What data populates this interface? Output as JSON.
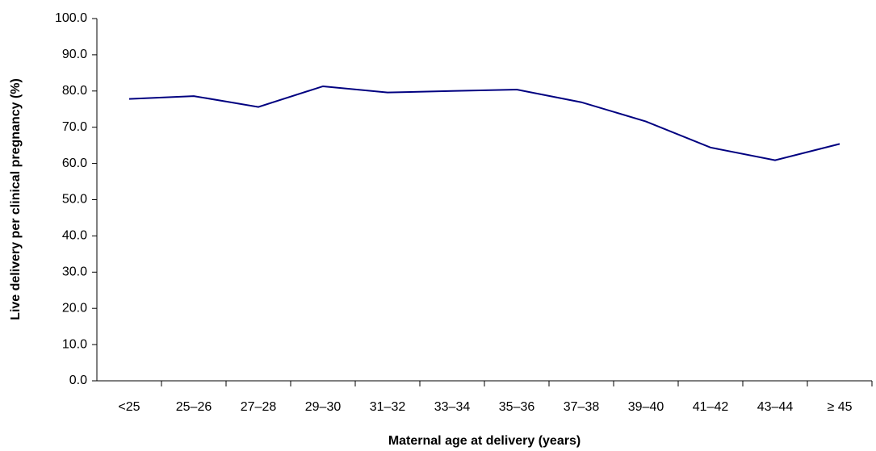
{
  "chart_data": {
    "type": "line",
    "xlabel": "Maternal age at delivery (years)",
    "ylabel": "Live delivery per clinical pregnancy (%)",
    "categories": [
      "<25",
      "25–26",
      "27–28",
      "29–30",
      "31–32",
      "33–34",
      "35–36",
      "37–38",
      "39–40",
      "41–42",
      "43–44",
      "≥ 45"
    ],
    "series": [
      {
        "color": "#000080",
        "values": [
          77.8,
          78.6,
          75.6,
          81.3,
          79.6,
          80.0,
          80.4,
          76.9,
          71.6,
          64.4,
          60.9,
          65.4
        ]
      }
    ],
    "ylim": [
      0,
      100
    ],
    "yticks": [
      {
        "value": 0,
        "label": "0.0"
      },
      {
        "value": 10,
        "label": "10.0"
      },
      {
        "value": 20,
        "label": "20.0"
      },
      {
        "value": 30,
        "label": "30.0"
      },
      {
        "value": 40,
        "label": "40.0"
      },
      {
        "value": 50,
        "label": "50.0"
      },
      {
        "value": 60,
        "label": "60.0"
      },
      {
        "value": 70,
        "label": "70.0"
      },
      {
        "value": 80,
        "label": "80.0"
      },
      {
        "value": 90,
        "label": "90.0"
      },
      {
        "value": 100,
        "label": "100.0"
      }
    ],
    "grid": false
  }
}
